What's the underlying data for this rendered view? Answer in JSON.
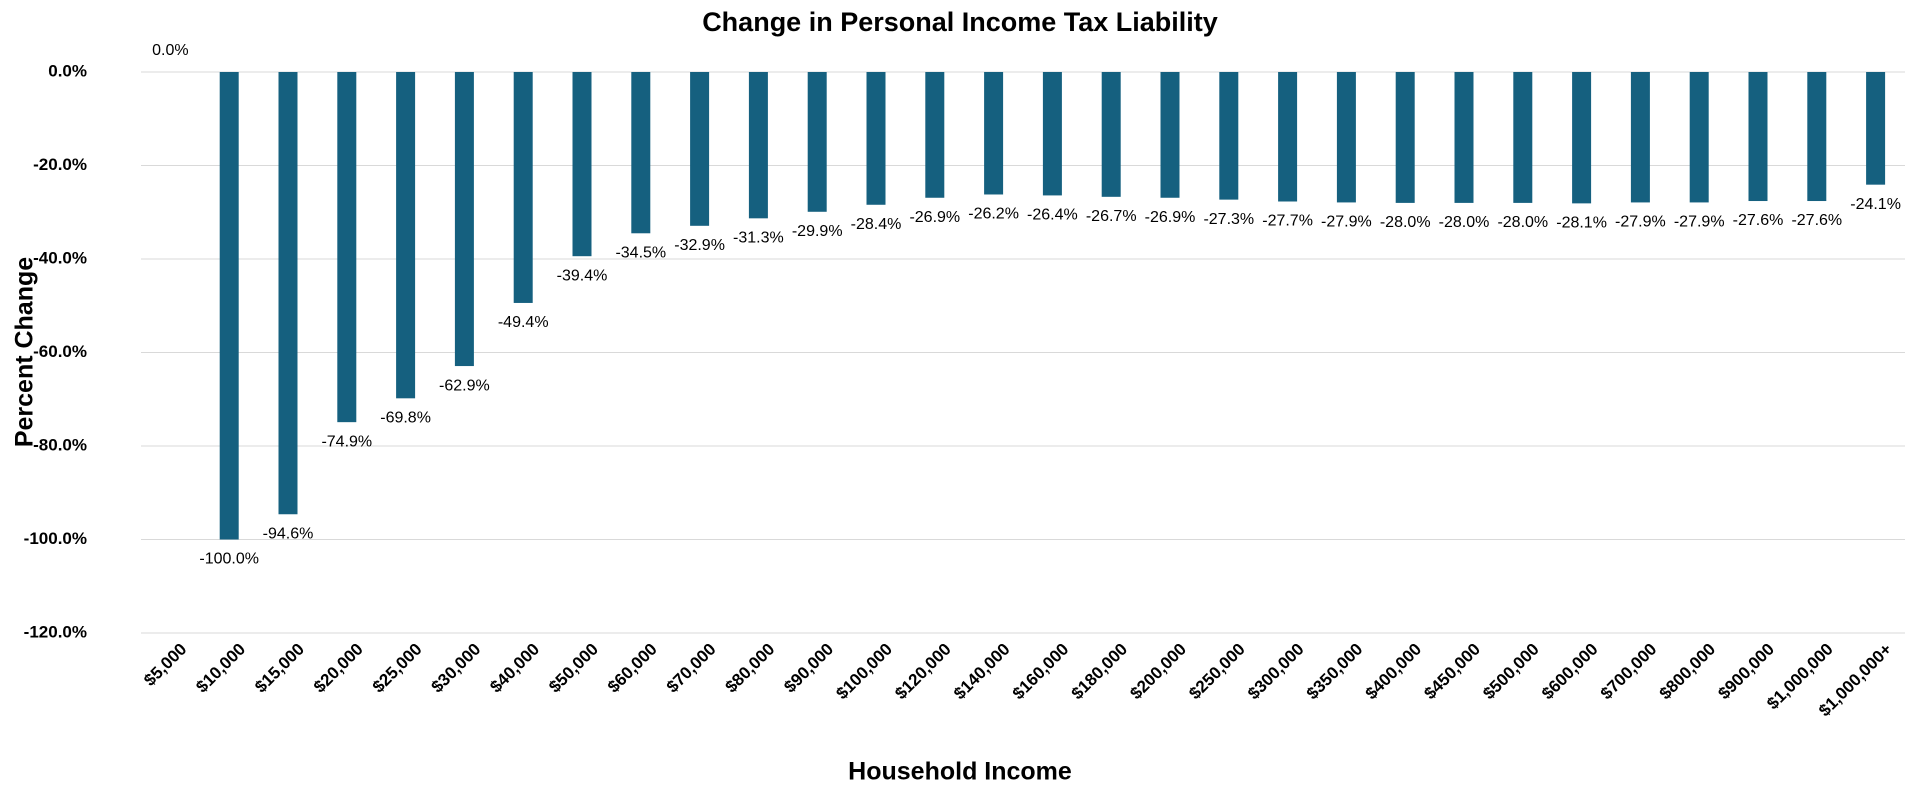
{
  "chart_data": {
    "type": "bar",
    "title": "Change in Personal Income Tax Liability",
    "x_label": "Household Income",
    "y_label": "Percent Change",
    "categories": [
      "$5,000",
      "$10,000",
      "$15,000",
      "$20,000",
      "$25,000",
      "$30,000",
      "$40,000",
      "$50,000",
      "$60,000",
      "$70,000",
      "$80,000",
      "$90,000",
      "$100,000",
      "$120,000",
      "$140,000",
      "$160,000",
      "$180,000",
      "$200,000",
      "$250,000",
      "$300,000",
      "$350,000",
      "$400,000",
      "$450,000",
      "$500,000",
      "$600,000",
      "$700,000",
      "$800,000",
      "$900,000",
      "$1,000,000",
      "$1,000,000+"
    ],
    "values": [
      0.0,
      -100.0,
      -94.6,
      -74.9,
      -69.8,
      -62.9,
      -49.4,
      -39.4,
      -34.5,
      -32.9,
      -31.3,
      -29.9,
      -28.4,
      -26.9,
      -26.2,
      -26.4,
      -26.7,
      -26.9,
      -27.3,
      -27.7,
      -27.9,
      -28.0,
      -28.0,
      -28.0,
      -28.1,
      -27.9,
      -27.9,
      -27.6,
      -27.6,
      -24.1
    ],
    "value_labels": [
      "0.0%",
      "-100.0%",
      "-94.6%",
      "-74.9%",
      "-69.8%",
      "-62.9%",
      "-49.4%",
      "-39.4%",
      "-34.5%",
      "-32.9%",
      "-31.3%",
      "-29.9%",
      "-28.4%",
      "-26.9%",
      "-26.2%",
      "-26.4%",
      "-26.7%",
      "-26.9%",
      "-27.3%",
      "-27.7%",
      "-27.9%",
      "-28.0%",
      "-28.0%",
      "-28.0%",
      "-28.1%",
      "-27.9%",
      "-27.9%",
      "-27.6%",
      "-27.6%",
      "-24.1%"
    ],
    "color": "#15607f",
    "ylim": [
      -120,
      0
    ],
    "yticks": [
      {
        "value": 0,
        "label": "0.0%"
      },
      {
        "value": -20,
        "label": "-20.0%"
      },
      {
        "value": -40,
        "label": "-40.0%"
      },
      {
        "value": -60,
        "label": "-60.0%"
      },
      {
        "value": -80,
        "label": "-80.0%"
      },
      {
        "value": -100,
        "label": "-100.0%"
      },
      {
        "value": -120,
        "label": "-120.0%"
      }
    ],
    "grid": true
  }
}
